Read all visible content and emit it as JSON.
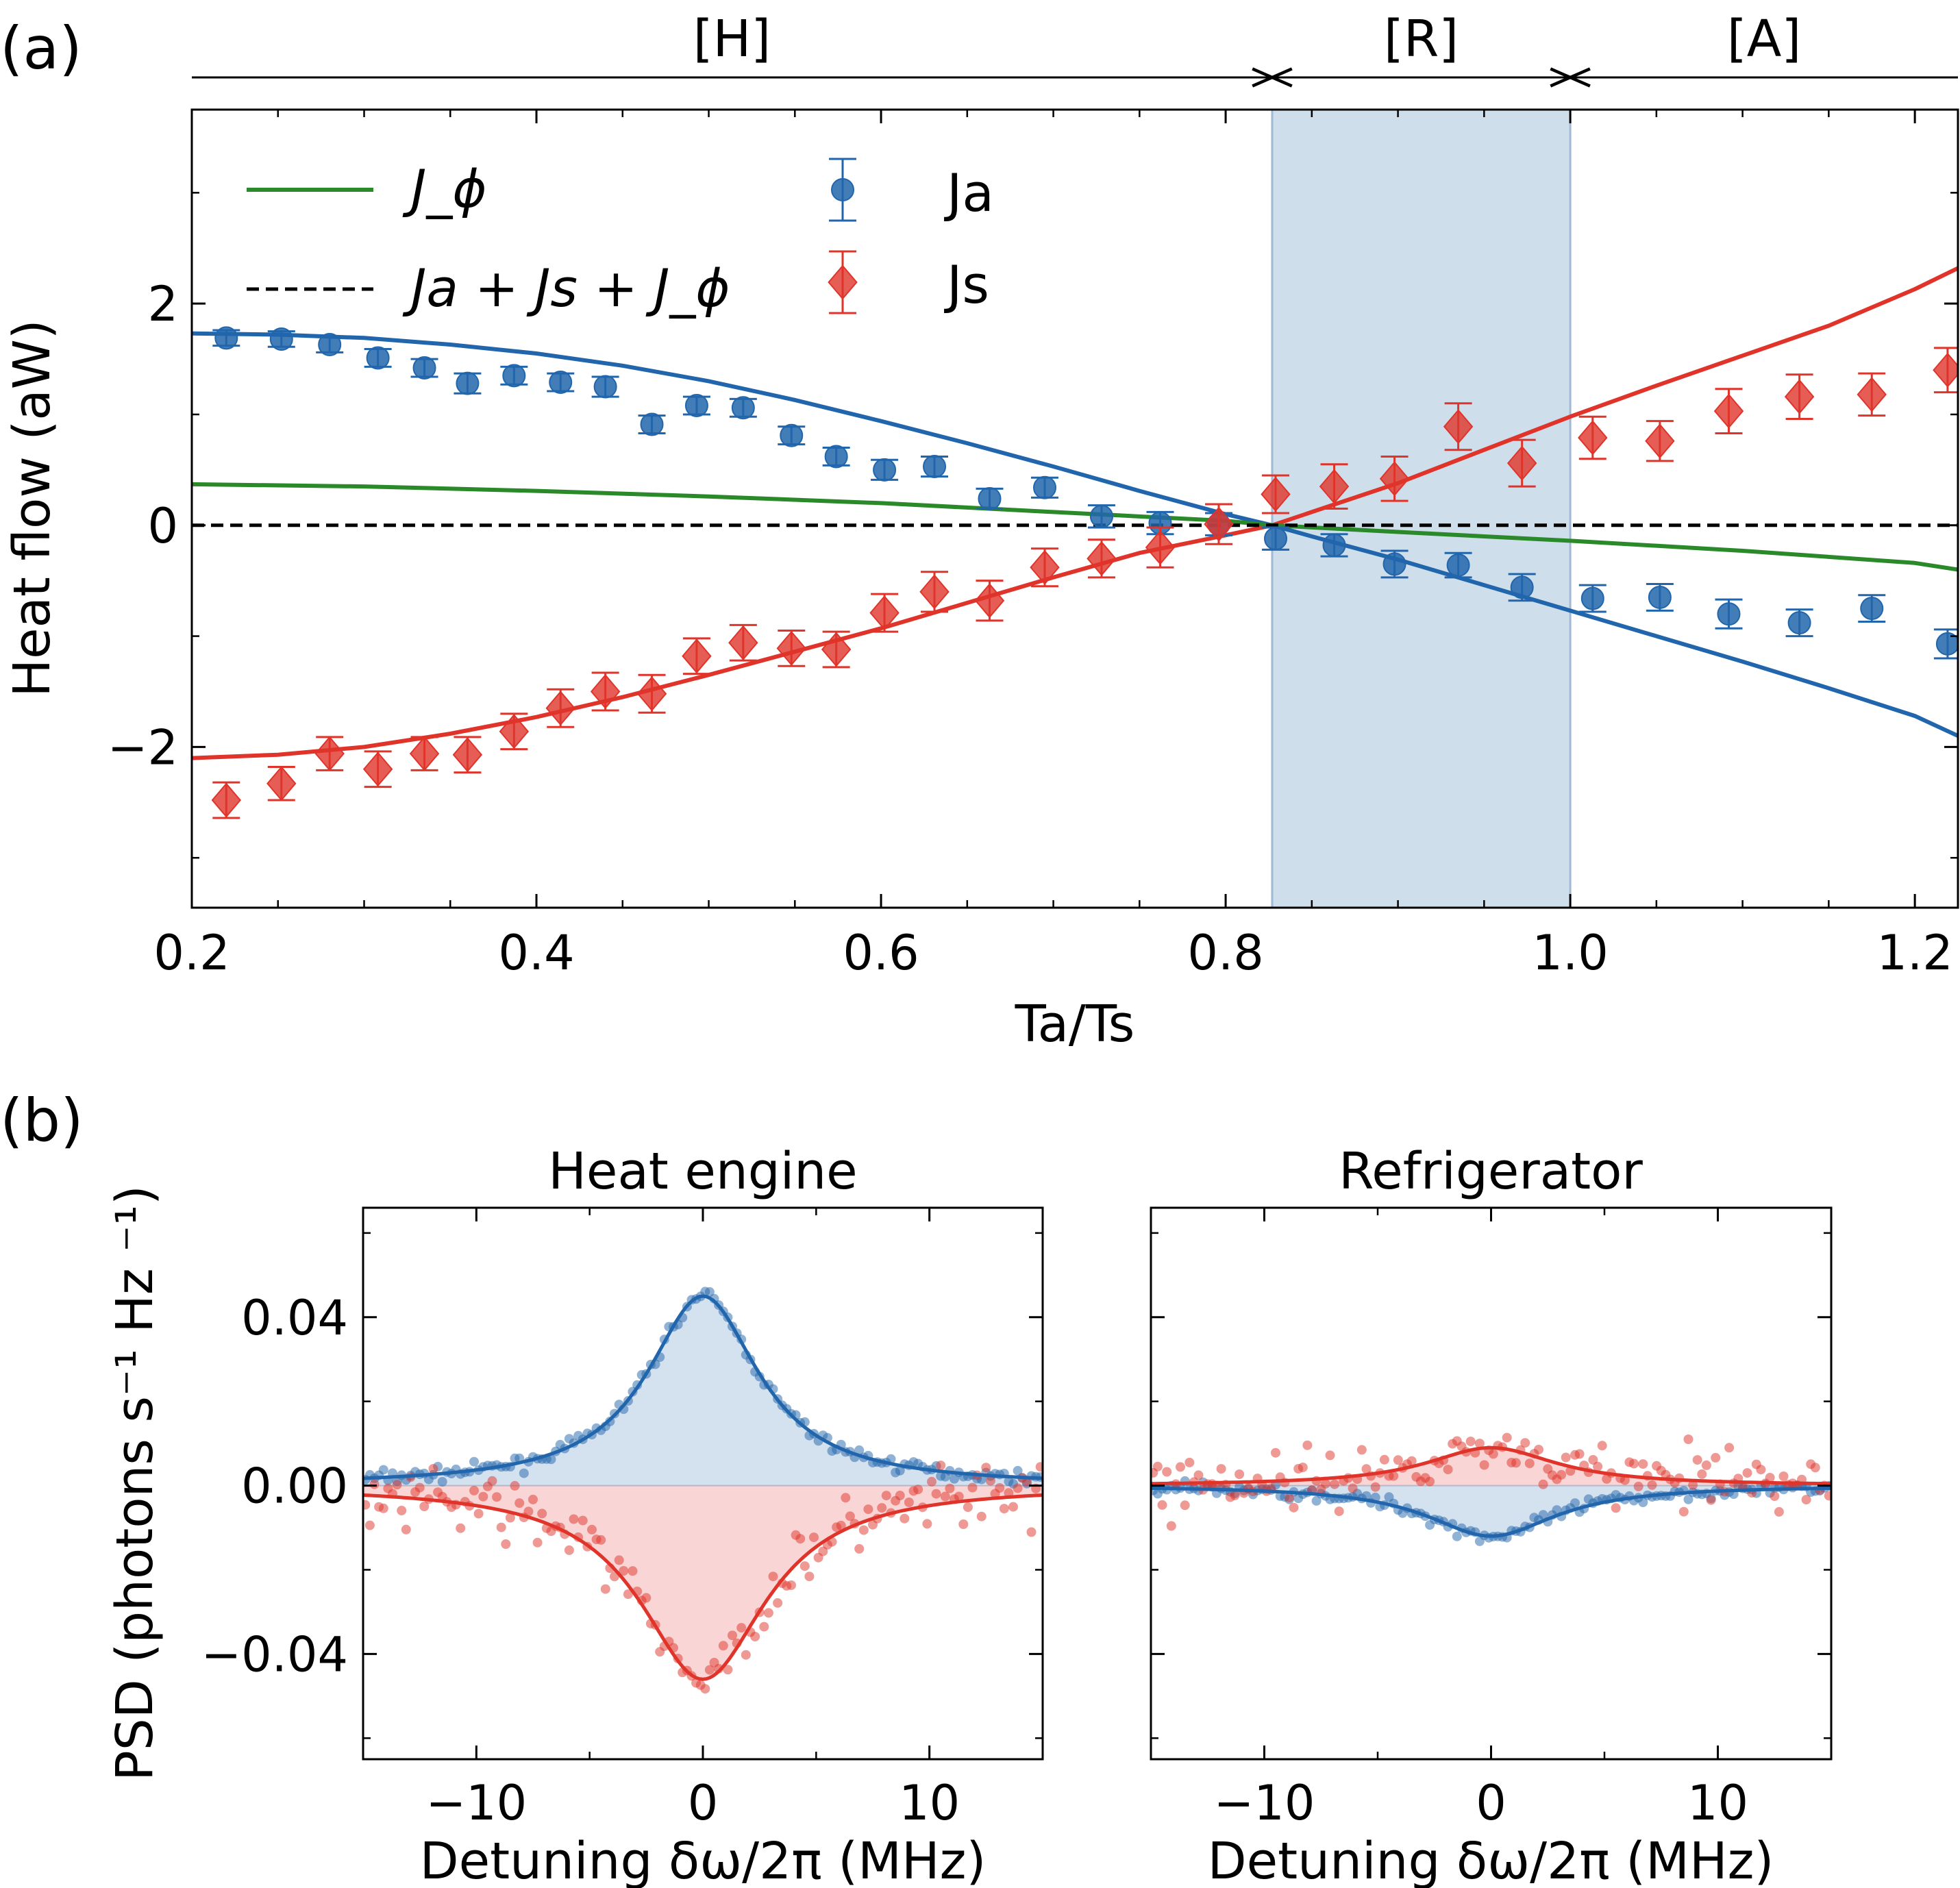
{
  "panel_labels": {
    "a": "(a)",
    "b": "(b)"
  },
  "colors": {
    "ja": "#2166ac",
    "js": "#e0342a",
    "jphi": "#2a8a2a",
    "total": "#000000",
    "shade": "#c7d8e8"
  },
  "regimes": [
    {
      "label": "[H]",
      "from": 0.2,
      "to": 0.827
    },
    {
      "label": "[R]",
      "from": 0.827,
      "to": 1.0
    },
    {
      "label": "[A]",
      "from": 1.0,
      "to": 1.225
    }
  ],
  "legend": {
    "jphi": "J_ϕ",
    "total": "Ja + Js + J_ϕ",
    "ja": "Ja",
    "js": "Js"
  },
  "chart_data": [
    {
      "type": "scatter",
      "panel": "(a)",
      "xlabel": "Ta/Ts",
      "ylabel": "Heat flow (aW)",
      "xlim": [
        0.2,
        1.225
      ],
      "ylim": [
        -3.45,
        3.75
      ],
      "xticks": [
        0.2,
        0.4,
        0.6,
        0.8,
        1.0,
        1.2
      ],
      "xtick_labels": [
        "0.2",
        "0.4",
        "0.6",
        "0.8",
        "1.0",
        "1.2"
      ],
      "yticks": [
        -2,
        0,
        2
      ],
      "ytick_labels": [
        "−2",
        "0",
        "2"
      ],
      "shaded_region": {
        "x": [
          0.827,
          1.0
        ]
      },
      "legend_position": "top-left",
      "series": [
        {
          "name": "Ja",
          "kind": "points",
          "x": [
            0.22,
            0.252,
            0.28,
            0.308,
            0.335,
            0.36,
            0.387,
            0.414,
            0.44,
            0.467,
            0.493,
            0.52,
            0.548,
            0.574,
            0.602,
            0.631,
            0.663,
            0.695,
            0.728,
            0.762,
            0.796,
            0.829,
            0.863,
            0.898,
            0.935,
            0.972,
            1.013,
            1.052,
            1.092,
            1.133,
            1.175,
            1.219
          ],
          "y": [
            1.69,
            1.68,
            1.63,
            1.51,
            1.42,
            1.28,
            1.35,
            1.29,
            1.25,
            0.91,
            1.08,
            1.06,
            0.81,
            0.62,
            0.5,
            0.53,
            0.24,
            0.34,
            0.08,
            0.02,
            0.01,
            -0.12,
            -0.18,
            -0.35,
            -0.36,
            -0.56,
            -0.66,
            -0.65,
            -0.8,
            -0.88,
            -0.75,
            -1.07
          ],
          "err": [
            0.07,
            0.07,
            0.07,
            0.08,
            0.08,
            0.09,
            0.08,
            0.08,
            0.09,
            0.08,
            0.08,
            0.08,
            0.08,
            0.08,
            0.09,
            0.09,
            0.09,
            0.09,
            0.1,
            0.1,
            0.1,
            0.1,
            0.1,
            0.12,
            0.11,
            0.12,
            0.12,
            0.12,
            0.13,
            0.12,
            0.12,
            0.13
          ]
        },
        {
          "name": "Js",
          "kind": "points",
          "x": [
            0.22,
            0.252,
            0.28,
            0.308,
            0.335,
            0.36,
            0.387,
            0.414,
            0.44,
            0.467,
            0.493,
            0.52,
            0.548,
            0.574,
            0.602,
            0.631,
            0.663,
            0.695,
            0.728,
            0.762,
            0.796,
            0.829,
            0.863,
            0.898,
            0.935,
            0.972,
            1.013,
            1.052,
            1.092,
            1.133,
            1.175,
            1.219
          ],
          "y": [
            -2.48,
            -2.33,
            -2.06,
            -2.2,
            -2.06,
            -2.07,
            -1.86,
            -1.65,
            -1.5,
            -1.52,
            -1.18,
            -1.06,
            -1.11,
            -1.12,
            -0.79,
            -0.6,
            -0.68,
            -0.38,
            -0.3,
            -0.2,
            0.01,
            0.28,
            0.35,
            0.42,
            0.89,
            0.56,
            0.79,
            0.76,
            1.03,
            1.16,
            1.18,
            1.4
          ],
          "err": [
            0.16,
            0.15,
            0.15,
            0.16,
            0.15,
            0.16,
            0.16,
            0.17,
            0.17,
            0.17,
            0.16,
            0.16,
            0.16,
            0.16,
            0.17,
            0.18,
            0.18,
            0.17,
            0.17,
            0.18,
            0.18,
            0.17,
            0.2,
            0.2,
            0.21,
            0.21,
            0.19,
            0.18,
            0.2,
            0.2,
            0.19,
            0.2
          ]
        },
        {
          "name": "Ja",
          "kind": "line",
          "x": [
            0.2,
            0.25,
            0.3,
            0.35,
            0.4,
            0.45,
            0.5,
            0.55,
            0.6,
            0.65,
            0.7,
            0.75,
            0.8,
            0.827,
            0.85,
            0.9,
            0.95,
            1.0,
            1.05,
            1.1,
            1.15,
            1.2,
            1.225
          ],
          "y": [
            1.73,
            1.72,
            1.69,
            1.63,
            1.55,
            1.44,
            1.3,
            1.13,
            0.94,
            0.74,
            0.53,
            0.31,
            0.1,
            0.0,
            -0.1,
            -0.31,
            -0.54,
            -0.77,
            -1.0,
            -1.23,
            -1.47,
            -1.72,
            -1.9
          ]
        },
        {
          "name": "Js",
          "kind": "line",
          "x": [
            0.2,
            0.25,
            0.3,
            0.35,
            0.4,
            0.45,
            0.5,
            0.55,
            0.6,
            0.65,
            0.7,
            0.75,
            0.8,
            0.827,
            0.85,
            0.9,
            0.95,
            1.0,
            1.05,
            1.1,
            1.15,
            1.2,
            1.225
          ],
          "y": [
            -2.1,
            -2.07,
            -2.0,
            -1.88,
            -1.73,
            -1.55,
            -1.35,
            -1.14,
            -0.93,
            -0.7,
            -0.47,
            -0.25,
            -0.09,
            0.0,
            0.12,
            0.38,
            0.68,
            0.98,
            1.26,
            1.53,
            1.8,
            2.13,
            2.32
          ]
        },
        {
          "name": "J_ϕ",
          "kind": "line",
          "x": [
            0.2,
            0.3,
            0.4,
            0.5,
            0.6,
            0.7,
            0.8,
            0.827,
            0.9,
            1.0,
            1.1,
            1.2,
            1.225
          ],
          "y": [
            0.37,
            0.35,
            0.31,
            0.26,
            0.2,
            0.12,
            0.04,
            0.0,
            -0.06,
            -0.14,
            -0.23,
            -0.34,
            -0.4
          ]
        },
        {
          "name": "Ja + Js + J_ϕ",
          "kind": "line",
          "style": "dashed",
          "x": [
            0.2,
            1.225
          ],
          "y": [
            0.0,
            0.0
          ]
        }
      ]
    },
    {
      "type": "scatter",
      "panel": "(b) left",
      "title": "Heat engine",
      "xlabel": "Detuning δω/2π (MHz)",
      "ylabel": "PSD (photons s⁻¹ Hz ⁻¹)",
      "xlim": [
        -15,
        15
      ],
      "ylim": [
        -0.065,
        0.066
      ],
      "xticks": [
        -10,
        0,
        10
      ],
      "xtick_labels": [
        "−10",
        "0",
        "10"
      ],
      "yticks": [
        -0.04,
        0.0,
        0.04
      ],
      "ytick_labels": [
        "−0.04",
        "0.00",
        "0.04"
      ],
      "series": [
        {
          "name": "blue",
          "kind": "lorentzian",
          "amplitude": 0.045,
          "gamma": 3.0,
          "filled": true
        },
        {
          "name": "red",
          "kind": "lorentzian",
          "amplitude": -0.046,
          "gamma": 3.4,
          "filled": true
        }
      ]
    },
    {
      "type": "scatter",
      "panel": "(b) right",
      "title": "Refrigerator",
      "xlabel": "Detuning δω/2π (MHz)",
      "xlim": [
        -15,
        15
      ],
      "ylim": [
        -0.065,
        0.066
      ],
      "xticks": [
        -10,
        0,
        10
      ],
      "xtick_labels": [
        "−10",
        "0",
        "10"
      ],
      "yticks": [
        -0.04,
        0.0,
        0.04
      ],
      "series": [
        {
          "name": "blue",
          "kind": "lorentzian",
          "amplitude": -0.012,
          "gamma": 3.5,
          "filled": true
        },
        {
          "name": "red",
          "kind": "lorentzian",
          "amplitude": 0.009,
          "gamma": 3.5,
          "filled": true
        }
      ]
    }
  ]
}
